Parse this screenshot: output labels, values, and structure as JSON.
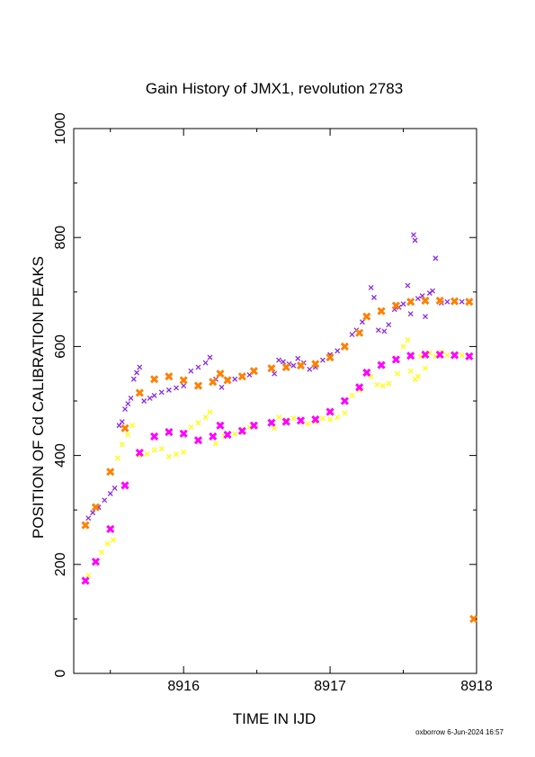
{
  "chart_data": {
    "type": "scatter",
    "title": "Gain History of JMX1, revolution 2783",
    "xlabel": "TIME IN IJD",
    "ylabel": "POSITION OF Cd CALIBRATION PEAKS",
    "xlim": [
      8915.25,
      8918.0
    ],
    "ylim": [
      0,
      1000
    ],
    "x_ticks": [
      "8916",
      "8917",
      "8918"
    ],
    "y_ticks": [
      "0",
      "200",
      "400",
      "600",
      "800",
      "1000"
    ],
    "grid": false,
    "legend": "none",
    "series": [
      {
        "color": "#8a2be2",
        "marker": "x",
        "points": [
          [
            8915.35,
            285
          ],
          [
            8915.38,
            295
          ],
          [
            8915.42,
            305
          ],
          [
            8915.46,
            318
          ],
          [
            8915.5,
            330
          ],
          [
            8915.53,
            340
          ],
          [
            8915.56,
            455
          ],
          [
            8915.58,
            462
          ],
          [
            8915.6,
            485
          ],
          [
            8915.62,
            495
          ],
          [
            8915.64,
            505
          ],
          [
            8915.66,
            540
          ],
          [
            8915.68,
            552
          ],
          [
            8915.7,
            562
          ],
          [
            8915.73,
            500
          ],
          [
            8915.77,
            505
          ],
          [
            8915.8,
            510
          ],
          [
            8915.85,
            516
          ],
          [
            8915.9,
            520
          ],
          [
            8915.95,
            524
          ],
          [
            8916.0,
            528
          ],
          [
            8916.05,
            555
          ],
          [
            8916.1,
            562
          ],
          [
            8916.15,
            570
          ],
          [
            8916.18,
            580
          ],
          [
            8916.22,
            540
          ],
          [
            8916.26,
            525
          ],
          [
            8916.3,
            540
          ],
          [
            8916.35,
            540
          ],
          [
            8916.4,
            544
          ],
          [
            8916.45,
            548
          ],
          [
            8916.62,
            550
          ],
          [
            8916.65,
            575
          ],
          [
            8916.68,
            572
          ],
          [
            8916.72,
            568
          ],
          [
            8916.75,
            565
          ],
          [
            8916.78,
            578
          ],
          [
            8916.82,
            570
          ],
          [
            8916.86,
            558
          ],
          [
            8916.9,
            562
          ],
          [
            8916.95,
            575
          ],
          [
            8917.0,
            585
          ],
          [
            8917.05,
            592
          ],
          [
            8917.1,
            600
          ],
          [
            8917.15,
            622
          ],
          [
            8917.18,
            630
          ],
          [
            8917.22,
            645
          ],
          [
            8917.28,
            708
          ],
          [
            8917.3,
            690
          ],
          [
            8917.33,
            630
          ],
          [
            8917.37,
            628
          ],
          [
            8917.4,
            640
          ],
          [
            8917.44,
            668
          ],
          [
            8917.47,
            672
          ],
          [
            8917.5,
            678
          ],
          [
            8917.53,
            712
          ],
          [
            8917.55,
            660
          ],
          [
            8917.57,
            805
          ],
          [
            8917.58,
            795
          ],
          [
            8917.6,
            688
          ],
          [
            8917.63,
            693
          ],
          [
            8917.65,
            655
          ],
          [
            8917.68,
            698
          ],
          [
            8917.7,
            702
          ],
          [
            8917.72,
            762
          ],
          [
            8917.76,
            680
          ],
          [
            8917.8,
            682
          ],
          [
            8917.85,
            683
          ],
          [
            8917.9,
            682
          ],
          [
            8917.95,
            681
          ]
        ]
      },
      {
        "color": "#ffff00",
        "marker": "x",
        "points": [
          [
            8915.35,
            180
          ],
          [
            8915.4,
            205
          ],
          [
            8915.44,
            222
          ],
          [
            8915.48,
            238
          ],
          [
            8915.52,
            245
          ],
          [
            8915.55,
            395
          ],
          [
            8915.58,
            420
          ],
          [
            8915.62,
            438
          ],
          [
            8915.65,
            455
          ],
          [
            8915.7,
            400
          ],
          [
            8915.75,
            403
          ],
          [
            8915.8,
            410
          ],
          [
            8915.85,
            412
          ],
          [
            8915.9,
            398
          ],
          [
            8915.95,
            402
          ],
          [
            8916.0,
            406
          ],
          [
            8916.05,
            452
          ],
          [
            8916.1,
            460
          ],
          [
            8916.15,
            470
          ],
          [
            8916.18,
            480
          ],
          [
            8916.22,
            422
          ],
          [
            8916.28,
            435
          ],
          [
            8916.35,
            440
          ],
          [
            8916.4,
            442
          ],
          [
            8916.45,
            452
          ],
          [
            8916.62,
            450
          ],
          [
            8916.65,
            470
          ],
          [
            8916.7,
            465
          ],
          [
            8916.75,
            468
          ],
          [
            8916.8,
            462
          ],
          [
            8916.85,
            458
          ],
          [
            8916.9,
            462
          ],
          [
            8916.95,
            468
          ],
          [
            8917.0,
            466
          ],
          [
            8917.05,
            470
          ],
          [
            8917.1,
            478
          ],
          [
            8917.15,
            510
          ],
          [
            8917.2,
            520
          ],
          [
            8917.28,
            545
          ],
          [
            8917.32,
            530
          ],
          [
            8917.36,
            528
          ],
          [
            8917.4,
            532
          ],
          [
            8917.46,
            550
          ],
          [
            8917.5,
            600
          ],
          [
            8917.53,
            612
          ],
          [
            8917.55,
            555
          ],
          [
            8917.58,
            540
          ],
          [
            8917.6,
            545
          ],
          [
            8917.62,
            582
          ],
          [
            8917.65,
            560
          ],
          [
            8917.68,
            588
          ],
          [
            8917.72,
            582
          ],
          [
            8917.76,
            590
          ],
          [
            8917.8,
            584
          ],
          [
            8917.85,
            585
          ],
          [
            8917.9,
            584
          ]
        ]
      },
      {
        "color": "#ff8000",
        "marker": "x",
        "points": [
          [
            8915.33,
            272
          ],
          [
            8915.4,
            305
          ],
          [
            8915.5,
            370
          ],
          [
            8915.6,
            450
          ],
          [
            8915.7,
            515
          ],
          [
            8915.8,
            540
          ],
          [
            8915.9,
            545
          ],
          [
            8916.0,
            538
          ],
          [
            8916.1,
            528
          ],
          [
            8916.2,
            535
          ],
          [
            8916.25,
            550
          ],
          [
            8916.3,
            538
          ],
          [
            8916.4,
            545
          ],
          [
            8916.48,
            555
          ],
          [
            8916.6,
            560
          ],
          [
            8916.7,
            562
          ],
          [
            8916.8,
            565
          ],
          [
            8916.9,
            568
          ],
          [
            8917.0,
            580
          ],
          [
            8917.1,
            600
          ],
          [
            8917.2,
            625
          ],
          [
            8917.25,
            655
          ],
          [
            8917.35,
            665
          ],
          [
            8917.45,
            675
          ],
          [
            8917.55,
            682
          ],
          [
            8917.65,
            684
          ],
          [
            8917.75,
            684
          ],
          [
            8917.85,
            683
          ],
          [
            8917.95,
            682
          ],
          [
            8917.98,
            100
          ]
        ]
      },
      {
        "color": "#ff00ff",
        "marker": "x",
        "points": [
          [
            8915.33,
            170
          ],
          [
            8915.4,
            205
          ],
          [
            8915.5,
            265
          ],
          [
            8915.6,
            345
          ],
          [
            8915.7,
            405
          ],
          [
            8915.8,
            435
          ],
          [
            8915.9,
            443
          ],
          [
            8916.0,
            440
          ],
          [
            8916.1,
            428
          ],
          [
            8916.2,
            435
          ],
          [
            8916.25,
            455
          ],
          [
            8916.3,
            438
          ],
          [
            8916.4,
            445
          ],
          [
            8916.48,
            455
          ],
          [
            8916.6,
            460
          ],
          [
            8916.7,
            462
          ],
          [
            8916.8,
            464
          ],
          [
            8916.9,
            466
          ],
          [
            8917.0,
            480
          ],
          [
            8917.1,
            500
          ],
          [
            8917.2,
            525
          ],
          [
            8917.25,
            552
          ],
          [
            8917.35,
            566
          ],
          [
            8917.45,
            576
          ],
          [
            8917.55,
            583
          ],
          [
            8917.65,
            585
          ],
          [
            8917.75,
            585
          ],
          [
            8917.85,
            584
          ],
          [
            8917.95,
            582
          ]
        ]
      }
    ]
  },
  "footer": {
    "text": "oxborrow  6-Jun-2024 16:57"
  }
}
